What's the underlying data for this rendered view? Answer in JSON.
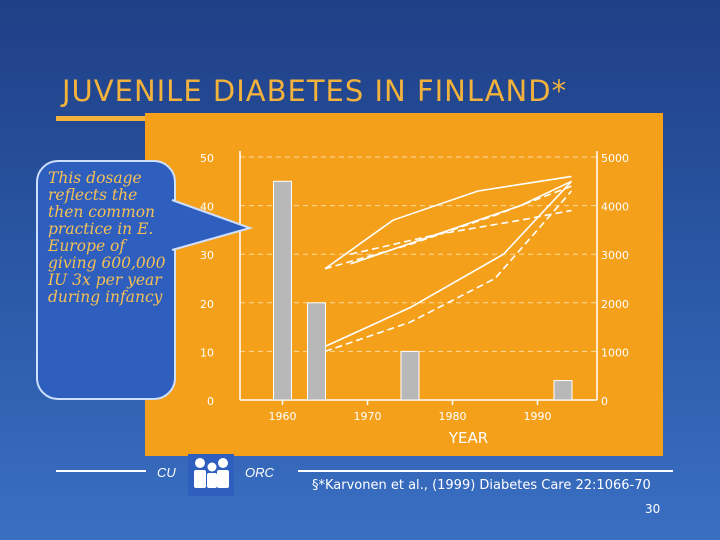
{
  "slide": {
    "title": "JUVENILE DIABETES IN FINLAND*",
    "callout": "This dosage reflects the then common practice in E. Europe of giving 600,000 IU 3x per year during infancy",
    "footer_left": "CU",
    "footer_right": "ORC",
    "citation": "§*Karvonen et al., (1999) Diabetes Care 22:1066-70",
    "slide_number": "30",
    "colors": {
      "background": "#2b5aa8",
      "accent": "#f2b23c",
      "chart_bg": "#f4a01b",
      "bars": "#b8b8b8",
      "lines": "#ffffff"
    },
    "icons": [
      "people-logo-icon"
    ]
  },
  "chart_data": {
    "type": "bar",
    "xlabel": "YEAR",
    "x_ticks": [
      1960,
      1970,
      1980,
      1990
    ],
    "xlim": [
      1955,
      1997
    ],
    "y_left_ticks": [
      0,
      10,
      20,
      30,
      40,
      50
    ],
    "y_left_lim": [
      0,
      50
    ],
    "y_right_ticks": [
      0,
      1000,
      2000,
      3000,
      4000,
      5000
    ],
    "y_right_lim": [
      0,
      5000
    ],
    "grid": "horizontal-dashed",
    "bars": {
      "x": [
        1960,
        1964,
        1975,
        1993
      ],
      "values": [
        45,
        20,
        10,
        4
      ]
    },
    "lines": [
      {
        "style": "solid",
        "x": [
          1965,
          1973,
          1983,
          1994
        ],
        "y": [
          2700,
          3700,
          4300,
          4600
        ]
      },
      {
        "style": "dashed",
        "x": [
          1965,
          1975,
          1985,
          1994
        ],
        "y": [
          2700,
          3200,
          3800,
          4400
        ]
      },
      {
        "style": "solid",
        "x": [
          1965,
          1975,
          1986,
          1994
        ],
        "y": [
          1100,
          1900,
          3000,
          4500
        ]
      },
      {
        "style": "dashed",
        "x": [
          1965,
          1975,
          1985,
          1994
        ],
        "y": [
          1000,
          1600,
          2500,
          4300
        ]
      },
      {
        "style": "solid",
        "x": [
          1968,
          1978,
          1988,
          1994
        ],
        "y": [
          2800,
          3400,
          4000,
          4500
        ]
      },
      {
        "style": "dashed",
        "x": [
          1968,
          1978,
          1988,
          1994
        ],
        "y": [
          3000,
          3400,
          3700,
          3900
        ]
      }
    ]
  }
}
